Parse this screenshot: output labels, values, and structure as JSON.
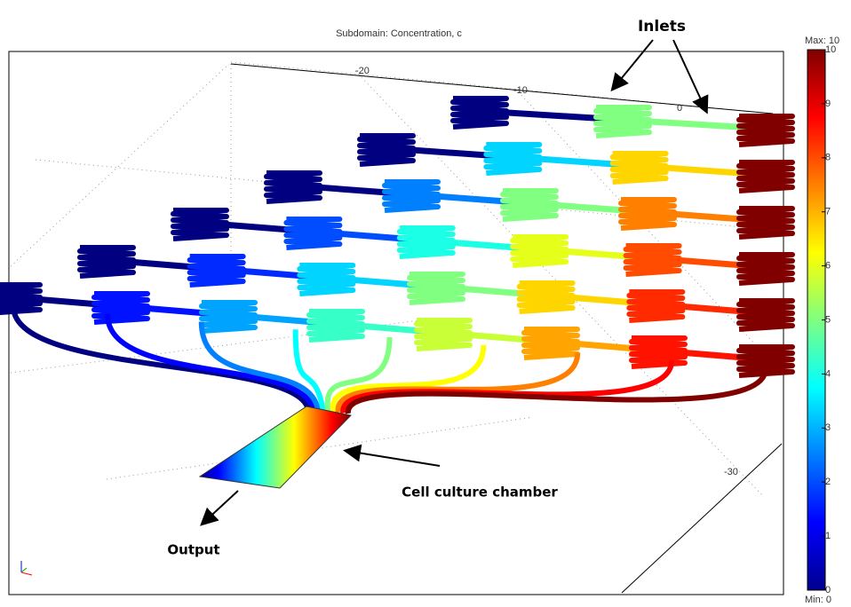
{
  "title": "Subdomain: Concentration, c",
  "annotations": {
    "inlets": "Inlets",
    "chamber": "Cell culture chamber",
    "output": "Output"
  },
  "axis_labels": [
    "-20",
    "-10",
    "0",
    "-30"
  ],
  "colorbar": {
    "max_label": "Max: 10",
    "min_label": "Min: 0",
    "range": [
      0,
      10
    ],
    "ticks": [
      0,
      1,
      2,
      3,
      4,
      5,
      6,
      7,
      8,
      9,
      10
    ]
  }
}
